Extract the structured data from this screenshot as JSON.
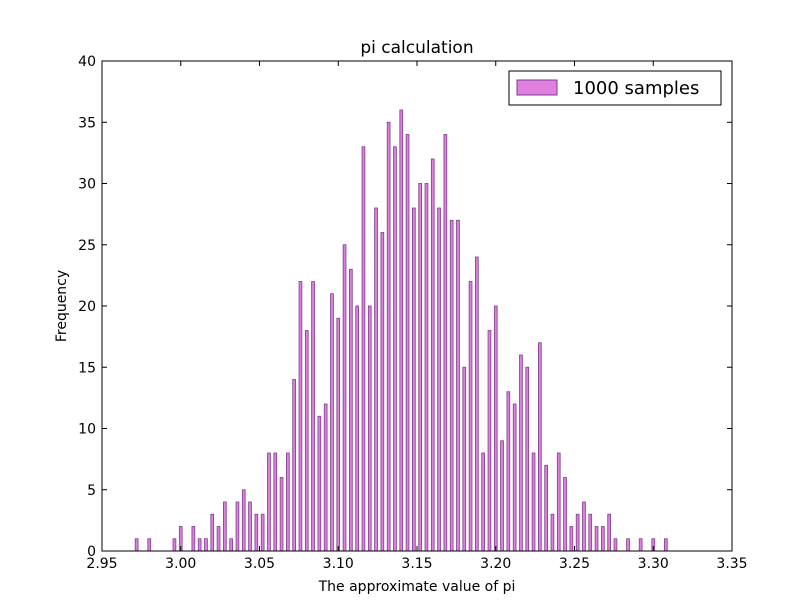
{
  "chart_data": {
    "type": "bar",
    "title": "pi calculation",
    "xlabel": "The approximate value of pi",
    "ylabel": "Frequency",
    "xlim": [
      2.95,
      3.35
    ],
    "ylim": [
      0,
      40
    ],
    "x_ticks": [
      "2.95",
      "3.00",
      "3.05",
      "3.10",
      "3.15",
      "3.20",
      "3.25",
      "3.30",
      "3.35"
    ],
    "y_ticks": [
      "0",
      "5",
      "10",
      "15",
      "20",
      "25",
      "30",
      "35",
      "40"
    ],
    "grid": false,
    "legend_position": "top-right",
    "bar_width": 0.0018,
    "series": [
      {
        "name": "1000 samples",
        "color": "#e07fe0",
        "edge_color": "#7a3f8a",
        "x": [
          2.972,
          2.98,
          2.996,
          3.0,
          3.008,
          3.012,
          3.016,
          3.02,
          3.024,
          3.028,
          3.032,
          3.036,
          3.04,
          3.044,
          3.048,
          3.052,
          3.056,
          3.06,
          3.064,
          3.068,
          3.072,
          3.076,
          3.08,
          3.084,
          3.088,
          3.092,
          3.096,
          3.1,
          3.104,
          3.108,
          3.112,
          3.116,
          3.12,
          3.124,
          3.128,
          3.132,
          3.136,
          3.14,
          3.144,
          3.148,
          3.152,
          3.156,
          3.16,
          3.164,
          3.168,
          3.172,
          3.176,
          3.18,
          3.184,
          3.188,
          3.192,
          3.196,
          3.2,
          3.204,
          3.208,
          3.212,
          3.216,
          3.22,
          3.224,
          3.228,
          3.232,
          3.236,
          3.24,
          3.244,
          3.248,
          3.252,
          3.256,
          3.26,
          3.264,
          3.268,
          3.272,
          3.276,
          3.28,
          3.284,
          3.292,
          3.3,
          3.308
        ],
        "values": [
          1,
          1,
          1,
          2,
          2,
          1,
          1,
          3,
          2,
          4,
          1,
          4,
          5,
          4,
          3,
          3,
          8,
          8,
          6,
          8,
          14,
          22,
          18,
          22,
          11,
          12,
          21,
          19,
          25,
          23,
          20,
          33,
          20,
          28,
          26,
          35,
          33,
          36,
          34,
          28,
          30,
          30,
          32,
          28,
          34,
          27,
          27,
          15,
          22,
          24,
          8,
          18,
          20,
          9,
          13,
          12,
          16,
          15,
          8,
          17,
          7,
          3,
          8,
          6,
          2,
          3,
          4,
          3,
          2,
          2,
          3,
          1,
          0,
          1,
          1,
          1,
          1
        ]
      }
    ]
  }
}
